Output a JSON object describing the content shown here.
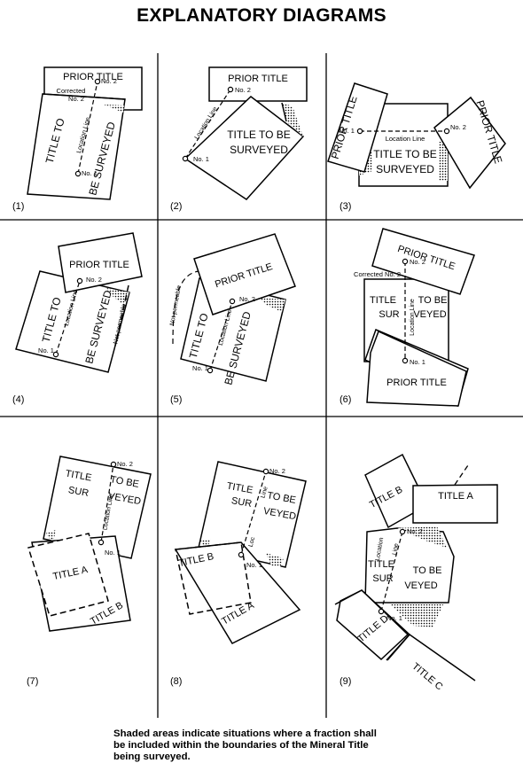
{
  "title": "EXPLANATORY DIAGRAMS",
  "caption": "Shaded areas indicate situations where a fraction shall be included within the boundaries of the Mineral Title being surveyed.",
  "labels": {
    "prior_title": "PRIOR TITLE",
    "title_to": "TITLE TO",
    "be_surveyed": "BE SURVEYED",
    "title_to_be": "TITLE TO BE",
    "surveyed": "SURVEYED",
    "title": "TITLE",
    "to_be": "TO BE",
    "sur": "SUR",
    "veyed": "VEYED",
    "title_a": "TITLE A",
    "title_b": "TITLE B",
    "title_c": "TITLE C",
    "title_d": "TITLE D",
    "location_line": "Location Line",
    "location": "Location",
    "line": "Line",
    "loc": "Loc",
    "no1": "No. 1",
    "no2": "No. 2",
    "corrected_no2": "Corrected No. 2",
    "corrected": "Corrected",
    "not_permeable": "Not permeable"
  },
  "panels": [
    {
      "number": "(1)"
    },
    {
      "number": "(2)"
    },
    {
      "number": "(3)"
    },
    {
      "number": "(4)"
    },
    {
      "number": "(5)"
    },
    {
      "number": "(6)"
    },
    {
      "number": "(7)"
    },
    {
      "number": "(8)"
    },
    {
      "number": "(9)"
    }
  ]
}
